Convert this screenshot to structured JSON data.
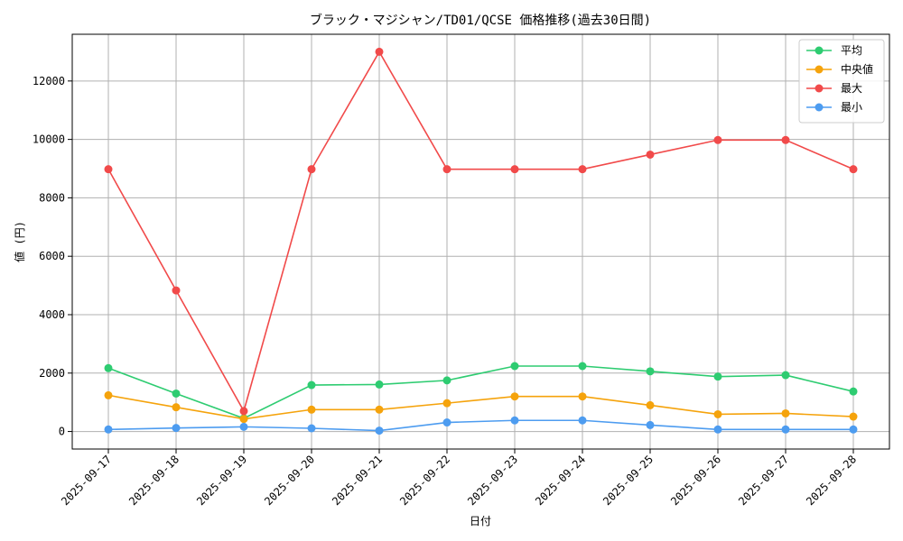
{
  "chart_data": {
    "type": "line",
    "title": "ブラック・マジシャン/TD01/QCSE 価格推移(過去30日間)",
    "xlabel": "日付",
    "ylabel": "値 (円)",
    "categories": [
      "2025-09-17",
      "2025-09-18",
      "2025-09-19",
      "2025-09-20",
      "2025-09-21",
      "2025-09-22",
      "2025-09-23",
      "2025-09-24",
      "2025-09-25",
      "2025-09-26",
      "2025-09-27",
      "2025-09-28"
    ],
    "ylim": [
      -600,
      13600
    ],
    "yticks": [
      0,
      2000,
      4000,
      6000,
      8000,
      10000,
      12000
    ],
    "grid": true,
    "legend_position": "top-right",
    "series": [
      {
        "name": "平均",
        "color": "#2ecc71",
        "values": [
          2170,
          1300,
          450,
          1590,
          1610,
          1750,
          2240,
          2240,
          2060,
          1880,
          1930,
          1370
        ]
      },
      {
        "name": "中央値",
        "color": "#f5a30c",
        "values": [
          1240,
          830,
          430,
          750,
          750,
          970,
          1200,
          1200,
          900,
          590,
          620,
          510
        ]
      },
      {
        "name": "最大",
        "color": "#f14a4a",
        "values": [
          8980,
          4830,
          700,
          8980,
          13000,
          8980,
          8980,
          8980,
          9480,
          9980,
          9980,
          8980
        ]
      },
      {
        "name": "最小",
        "color": "#4d9cf0",
        "values": [
          70,
          120,
          160,
          110,
          30,
          310,
          380,
          380,
          220,
          70,
          70,
          70
        ]
      }
    ]
  }
}
